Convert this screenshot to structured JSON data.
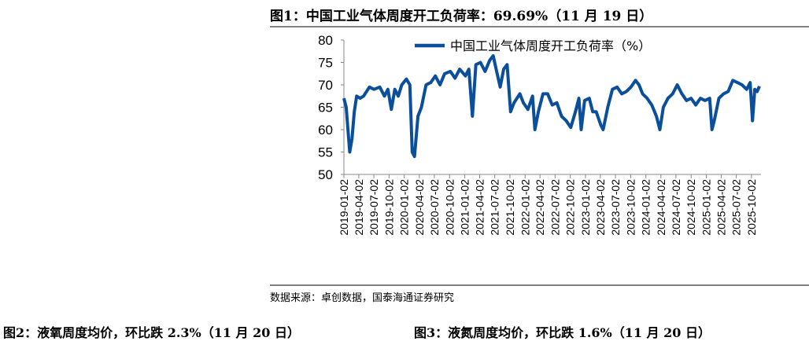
{
  "title": "图1：中国工业气体周度开工负荷率：69.69%（11 月 19 日）",
  "source": "数据来源：卓创数据，国泰海通证券研究",
  "bottom_titles": [
    "图2：液氧周度均价，环比跌 2.3%（11 月 20 日）",
    "图3：液氮周度均价，环比跌 1.6%（11 月 20 日）"
  ],
  "chart_data": {
    "type": "line",
    "title": "",
    "xlabel": "",
    "ylabel": "",
    "ylim": [
      50,
      80
    ],
    "yticks": [
      "50",
      "55",
      "60",
      "65",
      "70",
      "75",
      "80"
    ],
    "xticks": [
      "2019-01-02",
      "2019-04-02",
      "2019-07-02",
      "2019-10-02",
      "2020-01-02",
      "2020-04-02",
      "2020-07-02",
      "2020-10-02",
      "2021-01-02",
      "2021-04-02",
      "2021-07-02",
      "2021-10-02",
      "2022-01-02",
      "2022-04-02",
      "2022-07-02",
      "2022-10-02",
      "2023-01-02",
      "2023-04-02",
      "2023-07-02",
      "2023-10-02",
      "2024-01-02",
      "2024-04-02",
      "2024-07-02",
      "2024-10-02",
      "2025-01-02",
      "2025-04-02",
      "2025-07-02",
      "2025-10-02"
    ],
    "grid": false,
    "legend": "top",
    "color": "#0B4F9C",
    "series": [
      {
        "name": "中国工业气体周度开工负荷率（%）",
        "x": [
          "2019-01-02",
          "2019-01-16",
          "2019-02-06",
          "2019-02-20",
          "2019-03-06",
          "2019-03-20",
          "2019-04-10",
          "2019-05-01",
          "2019-06-05",
          "2019-07-03",
          "2019-08-07",
          "2019-09-04",
          "2019-09-25",
          "2019-10-16",
          "2019-11-06",
          "2019-11-27",
          "2019-12-18",
          "2020-01-15",
          "2020-02-05",
          "2020-02-19",
          "2020-03-04",
          "2020-03-25",
          "2020-04-15",
          "2020-05-13",
          "2020-06-10",
          "2020-07-08",
          "2020-08-05",
          "2020-09-02",
          "2020-10-07",
          "2020-11-04",
          "2020-12-02",
          "2021-01-06",
          "2021-01-27",
          "2021-02-17",
          "2021-03-10",
          "2021-04-07",
          "2021-05-05",
          "2021-06-02",
          "2021-06-23",
          "2021-07-14",
          "2021-08-04",
          "2021-08-25",
          "2021-09-15",
          "2021-10-06",
          "2021-10-27",
          "2021-12-01",
          "2021-12-22",
          "2022-01-19",
          "2022-02-16",
          "2022-03-02",
          "2022-03-23",
          "2022-04-20",
          "2022-05-18",
          "2022-06-15",
          "2022-07-13",
          "2022-08-10",
          "2022-09-07",
          "2022-10-05",
          "2022-11-02",
          "2022-11-23",
          "2022-12-07",
          "2022-12-28",
          "2023-01-25",
          "2023-02-15",
          "2023-03-08",
          "2023-04-05",
          "2023-04-19",
          "2023-05-17",
          "2023-06-14",
          "2023-07-12",
          "2023-08-09",
          "2023-09-06",
          "2023-10-04",
          "2023-11-01",
          "2023-11-22",
          "2023-12-13",
          "2024-01-10",
          "2024-02-07",
          "2024-03-06",
          "2024-03-27",
          "2024-04-17",
          "2024-05-15",
          "2024-06-12",
          "2024-07-10",
          "2024-08-07",
          "2024-09-04",
          "2024-10-02",
          "2024-10-30",
          "2024-11-27",
          "2024-12-25",
          "2025-01-22",
          "2025-02-05",
          "2025-02-19",
          "2025-03-19",
          "2025-04-16",
          "2025-05-14",
          "2025-06-11",
          "2025-07-09",
          "2025-08-06",
          "2025-09-03",
          "2025-09-24",
          "2025-10-08",
          "2025-10-22",
          "2025-11-05",
          "2025-11-19"
        ],
        "values": [
          67,
          65,
          55,
          58,
          64,
          67.5,
          67,
          67.5,
          69.5,
          69,
          69.5,
          67.5,
          69,
          64.5,
          69,
          67.5,
          70,
          71.3,
          70,
          55,
          54,
          63,
          65,
          70,
          70.5,
          72,
          70,
          72.5,
          73,
          71.5,
          73.5,
          72,
          73.5,
          63,
          74.5,
          75,
          73,
          75.5,
          76.5,
          73,
          69.5,
          73.5,
          74.5,
          64,
          66,
          68,
          66,
          64.5,
          67.5,
          60,
          64,
          68,
          68,
          65.5,
          66,
          63,
          62,
          60.5,
          64,
          67,
          60,
          66.5,
          67,
          64,
          64,
          61,
          60,
          65,
          69,
          69.5,
          68,
          68.5,
          69.5,
          71,
          70,
          68,
          67,
          65.5,
          63,
          60,
          65,
          67,
          68,
          70,
          68,
          66.5,
          67,
          65.5,
          67,
          66.5,
          67,
          60,
          62,
          67,
          68,
          68.5,
          71,
          70.5,
          70,
          69,
          70.5,
          62,
          69,
          68.5,
          69.69
        ]
      }
    ]
  }
}
